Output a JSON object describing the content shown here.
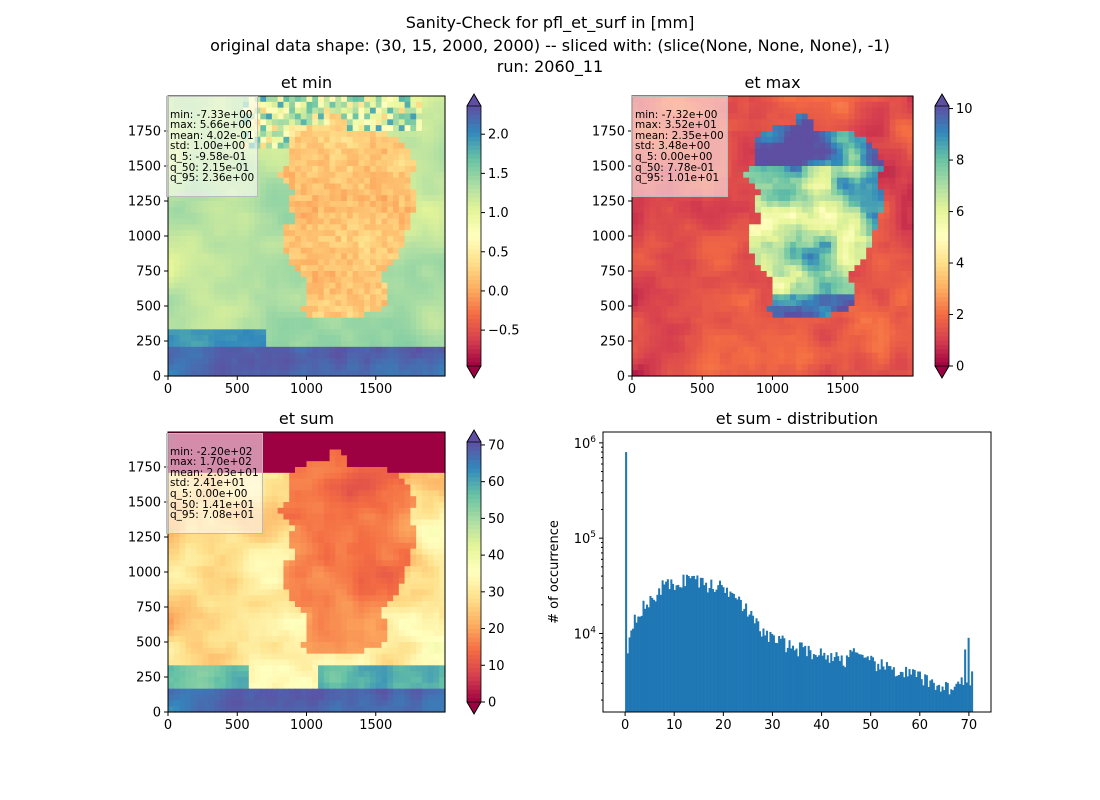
{
  "figure": {
    "title_lines": [
      "Sanity-Check for pfl_et_surf in [mm]",
      "original data shape: (30, 15, 2000, 2000) -- sliced with: (slice(None, None, None), -1)",
      "run: 2060_11"
    ]
  },
  "colors": {
    "hist_bar": "#1f77b4",
    "axes": "#000000",
    "colormap": "Spectral"
  },
  "chart_data": [
    {
      "id": "et-min",
      "type": "heatmap",
      "title": "et min",
      "xlim": [
        0,
        2000
      ],
      "ylim": [
        0,
        2000
      ],
      "x_ticks": [
        0,
        500,
        1000,
        1500
      ],
      "y_ticks": [
        0,
        250,
        500,
        750,
        1000,
        1250,
        1500,
        1750
      ],
      "colorbar": {
        "min": -0.958,
        "max": 2.36,
        "ticks": [
          -0.5,
          0.0,
          0.5,
          1.0,
          1.5,
          2.0
        ],
        "tick_labels": [
          "−0.5",
          "0.0",
          "0.5",
          "1.0",
          "1.5",
          "2.0"
        ],
        "extend": "both"
      },
      "stats": [
        "min: -7.33e+00",
        "max: 5.66e+00",
        "mean: 4.02e-01",
        "std: 1.00e+00",
        "q_5: -9.58e-01",
        "q_50: 2.15e-01",
        "q_95: 2.36e+00"
      ]
    },
    {
      "id": "et-max",
      "type": "heatmap",
      "title": "et max",
      "xlim": [
        0,
        2000
      ],
      "ylim": [
        0,
        2000
      ],
      "x_ticks": [
        0,
        500,
        1000,
        1500
      ],
      "y_ticks": [
        0,
        250,
        500,
        750,
        1000,
        1250,
        1500,
        1750
      ],
      "colorbar": {
        "min": 0.0,
        "max": 10.1,
        "ticks": [
          0,
          2,
          4,
          6,
          8,
          10
        ],
        "tick_labels": [
          "0",
          "2",
          "4",
          "6",
          "8",
          "10"
        ],
        "extend": "both"
      },
      "stats": [
        "min: -7.32e+00",
        "max: 3.52e+01",
        "mean: 2.35e+00",
        "std: 3.48e+00",
        "q_5: 0.00e+00",
        "q_50: 7.78e-01",
        "q_95: 1.01e+01"
      ]
    },
    {
      "id": "et-sum",
      "type": "heatmap",
      "title": "et sum",
      "xlim": [
        0,
        2000
      ],
      "ylim": [
        0,
        2000
      ],
      "x_ticks": [
        0,
        500,
        1000,
        1500
      ],
      "y_ticks": [
        0,
        250,
        500,
        750,
        1000,
        1250,
        1500,
        1750
      ],
      "colorbar": {
        "min": 0.0,
        "max": 70.8,
        "ticks": [
          0,
          10,
          20,
          30,
          40,
          50,
          60,
          70
        ],
        "tick_labels": [
          "0",
          "10",
          "20",
          "30",
          "40",
          "50",
          "60",
          "70"
        ],
        "extend": "both"
      },
      "stats": [
        "min: -2.20e+02",
        "max: 1.70e+02",
        "mean: 2.03e+01",
        "std: 2.41e+01",
        "q_5: 0.00e+00",
        "q_50: 1.41e+01",
        "q_95: 7.08e+01"
      ]
    },
    {
      "id": "et-sum-distribution",
      "type": "bar",
      "title": "et sum - distribution",
      "ylabel": "# of occurrence",
      "y_scale": "log",
      "xlim": [
        -4.5,
        74.5
      ],
      "ylim": [
        1500,
        1300000
      ],
      "x_ticks": [
        0,
        10,
        20,
        30,
        40,
        50,
        60,
        70
      ],
      "y_ticks": [
        10000,
        100000,
        1000000
      ],
      "y_tick_labels": [
        {
          "base": "10",
          "exp": "4"
        },
        {
          "base": "10",
          "exp": "5"
        },
        {
          "base": "10",
          "exp": "6"
        }
      ],
      "bin_width": 0.354,
      "bin_start": 0.0,
      "anchor_values": [
        [
          0.0,
          800000
        ],
        [
          0.35,
          6000
        ],
        [
          0.7,
          8000
        ],
        [
          1.0,
          10000
        ],
        [
          1.5,
          13000
        ],
        [
          2.0,
          15000
        ],
        [
          3.0,
          17500
        ],
        [
          4.0,
          19500
        ],
        [
          5.0,
          21000
        ],
        [
          6.0,
          24000
        ],
        [
          7.0,
          29000
        ],
        [
          8.0,
          33000
        ],
        [
          9.0,
          32000
        ],
        [
          10.0,
          33000
        ],
        [
          11.0,
          34000
        ],
        [
          12.0,
          36500
        ],
        [
          13.0,
          39500
        ],
        [
          14.0,
          38000
        ],
        [
          15.0,
          36000
        ],
        [
          16.0,
          33000
        ],
        [
          17.0,
          32000
        ],
        [
          18.0,
          31000
        ],
        [
          19.0,
          32000
        ],
        [
          20.0,
          30000
        ],
        [
          21.0,
          28000
        ],
        [
          22.0,
          30500
        ],
        [
          23.0,
          25000
        ],
        [
          24.0,
          20000
        ],
        [
          25.0,
          17000
        ],
        [
          26.0,
          14000
        ],
        [
          27.0,
          12000
        ],
        [
          28.0,
          10500
        ],
        [
          29.0,
          9500
        ],
        [
          30.0,
          9000
        ],
        [
          31.0,
          8500
        ],
        [
          32.0,
          8200
        ],
        [
          33.0,
          7500
        ],
        [
          35.0,
          7000
        ],
        [
          37.0,
          6800
        ],
        [
          39.0,
          6200
        ],
        [
          41.0,
          5900
        ],
        [
          43.0,
          5600
        ],
        [
          45.0,
          5300
        ],
        [
          46.5,
          7000
        ],
        [
          48.0,
          5200
        ],
        [
          50.0,
          5000
        ],
        [
          52.0,
          4600
        ],
        [
          54.0,
          4300
        ],
        [
          56.0,
          4000
        ],
        [
          58.0,
          3800
        ],
        [
          60.0,
          3500
        ],
        [
          62.0,
          3000
        ],
        [
          64.0,
          2900
        ],
        [
          66.0,
          2700
        ],
        [
          68.0,
          2800
        ],
        [
          69.0,
          3600
        ],
        [
          70.0,
          2600
        ],
        [
          70.8,
          2400
        ]
      ],
      "spikes": [
        [
          0.0,
          800000
        ],
        [
          46.5,
          7000
        ],
        [
          69.3,
          6800
        ],
        [
          70.0,
          9000
        ],
        [
          70.5,
          4000
        ]
      ],
      "note": ""
    }
  ]
}
